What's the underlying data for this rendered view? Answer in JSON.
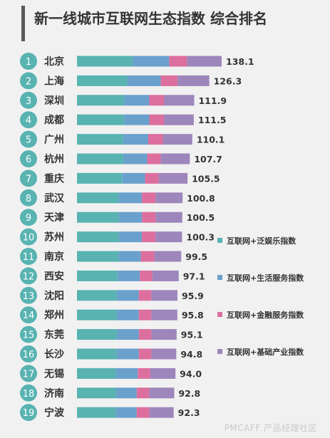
{
  "title": "新一线城市互联网生态指数 综合排名",
  "watermark": "PMCAFF 产品经理社区",
  "chart_data": {
    "type": "bar",
    "stacked": true,
    "orientation": "horizontal",
    "title": "新一线城市互联网生态指数 综合排名",
    "categories": [
      "北京",
      "上海",
      "深圳",
      "成都",
      "广州",
      "杭州",
      "重庆",
      "武汉",
      "天津",
      "苏州",
      "南京",
      "西安",
      "沈阳",
      "郑州",
      "东莞",
      "长沙",
      "无锡",
      "济南",
      "宁波"
    ],
    "ranks": [
      "1",
      "2",
      "3",
      "4",
      "5",
      "6",
      "7",
      "8",
      "9",
      "10",
      "11",
      "12",
      "13",
      "14",
      "15",
      "16",
      "17",
      "18",
      "19"
    ],
    "totals": [
      138.1,
      126.3,
      111.9,
      111.5,
      110.1,
      107.7,
      105.5,
      100.8,
      100.5,
      100.3,
      99.5,
      97.1,
      95.9,
      95.8,
      95.1,
      94.8,
      94.0,
      92.8,
      92.3
    ],
    "total_labels": [
      "138.1",
      "126.3",
      "111.9",
      "111.5",
      "110.1",
      "107.7",
      "105.5",
      "100.8",
      "100.5",
      "100.3",
      "99.5",
      "97.1",
      "95.9",
      "95.8",
      "95.1",
      "94.8",
      "94.0",
      "92.8",
      "92.3"
    ],
    "series": [
      {
        "name": "互联网+泛娱乐指数",
        "color": "#58b3b1",
        "values": [
          53,
          48,
          45,
          45,
          44,
          44,
          43,
          40,
          40,
          40,
          40,
          39,
          38,
          38,
          38,
          38,
          37,
          37,
          37
        ]
      },
      {
        "name": "互联网+生活服务指数",
        "color": "#6aa0cc",
        "values": [
          35,
          32,
          24,
          24,
          24,
          23,
          22,
          22,
          22,
          22,
          21,
          21,
          21,
          21,
          21,
          21,
          21,
          20,
          20
        ]
      },
      {
        "name": "互联网+金融服务指数",
        "color": "#dd6f9f",
        "values": [
          17,
          16,
          14,
          14,
          14,
          13,
          13,
          13,
          13,
          13,
          13,
          12,
          12,
          12,
          12,
          12,
          12,
          12,
          12
        ]
      },
      {
        "name": "互联网+基础产业指数",
        "color": "#9d86bb",
        "values": [
          33.1,
          30.3,
          28.9,
          28.5,
          28.1,
          27.7,
          27.5,
          25.8,
          25.5,
          25.3,
          25.5,
          25.1,
          24.9,
          24.8,
          24.1,
          23.8,
          24.0,
          23.8,
          23.3
        ]
      }
    ],
    "rank_circle_color": "#58b3b1",
    "xlim": [
      0,
      138.1
    ],
    "legend_position": "right"
  }
}
